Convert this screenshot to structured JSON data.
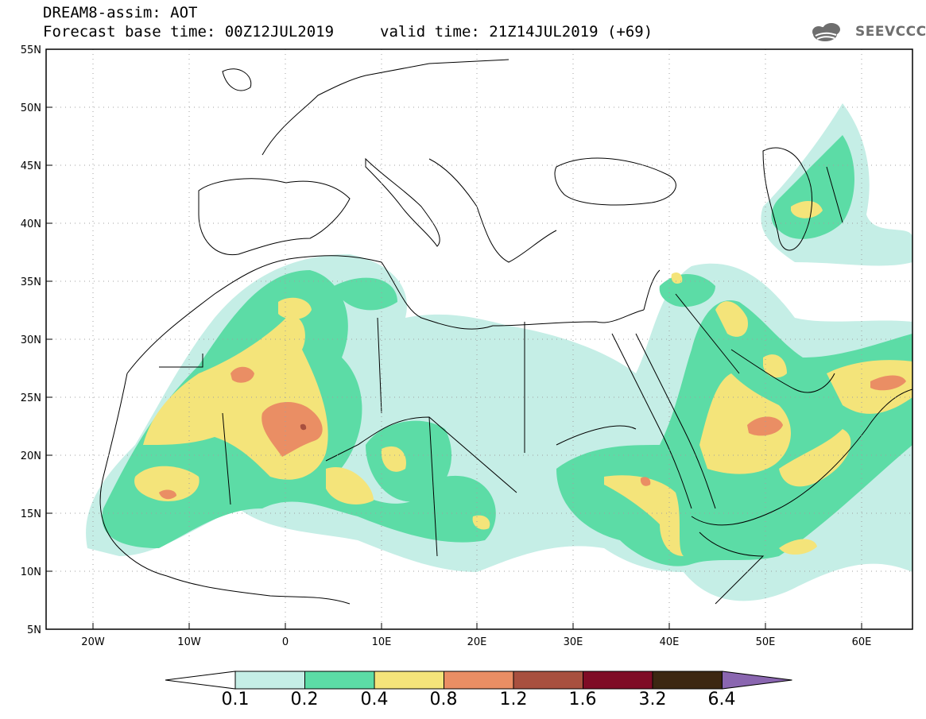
{
  "header": {
    "title": "DREAM8-assim: AOT",
    "base_time": "Forecast base time: 00Z12JUL2019",
    "valid_time": "valid time: 21Z14JUL2019 (+69)"
  },
  "logo": {
    "text": "SEEVCCC",
    "icon": "cloud-icon"
  },
  "map": {
    "lon_range": [
      -25,
      65
    ],
    "lat_range": [
      5,
      55
    ],
    "lat_ticks": [
      "55N",
      "50N",
      "45N",
      "40N",
      "35N",
      "30N",
      "25N",
      "20N",
      "15N",
      "10N",
      "5N"
    ],
    "lon_ticks": [
      "20W",
      "10W",
      "0",
      "10E",
      "20E",
      "30E",
      "40E",
      "50E",
      "60E"
    ],
    "grid": "dotted"
  },
  "colorbar": {
    "colors": [
      "#ffffff",
      "#c5eee6",
      "#5cdca6",
      "#f4e47a",
      "#ea8e64",
      "#a8503f",
      "#7f0c26",
      "#3c2712",
      "#8a66b0"
    ],
    "labels": [
      "0.1",
      "0.2",
      "0.4",
      "0.8",
      "1.2",
      "1.6",
      "3.2",
      "6.4"
    ]
  }
}
